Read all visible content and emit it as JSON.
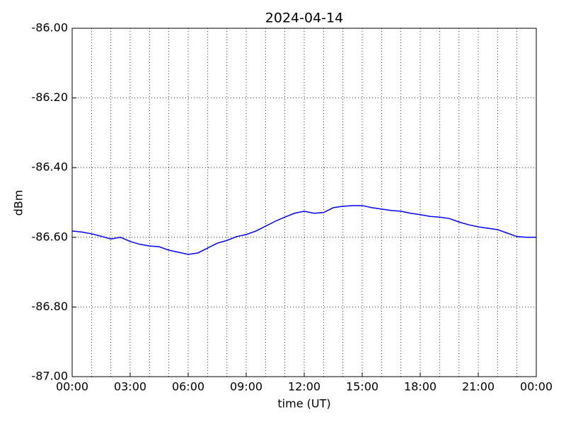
{
  "chart_data": {
    "type": "line",
    "title": "2024-04-14",
    "x_label": "time (UT)",
    "y_label": "dBm",
    "x": [
      0,
      0.5,
      1,
      1.5,
      2,
      2.5,
      3,
      3.5,
      4,
      4.5,
      5,
      5.5,
      6,
      6.5,
      7,
      7.5,
      8,
      8.5,
      9,
      9.5,
      10,
      10.5,
      11,
      11.5,
      12,
      12.5,
      13,
      13.5,
      14,
      14.5,
      15,
      15.5,
      16,
      16.5,
      17,
      17.5,
      18,
      18.5,
      19,
      19.5,
      20,
      20.5,
      21,
      21.5,
      22,
      22.5,
      23,
      23.5,
      24
    ],
    "series": [
      {
        "name": "dBm",
        "color": "#0000ff",
        "values": [
          -86.582,
          -86.585,
          -86.59,
          -86.597,
          -86.605,
          -86.6,
          -86.612,
          -86.62,
          -86.625,
          -86.627,
          -86.637,
          -86.643,
          -86.649,
          -86.645,
          -86.631,
          -86.617,
          -86.609,
          -86.598,
          -86.592,
          -86.582,
          -86.568,
          -86.554,
          -86.542,
          -86.531,
          -86.525,
          -86.531,
          -86.529,
          -86.515,
          -86.511,
          -86.509,
          -86.509,
          -86.515,
          -86.519,
          -86.523,
          -86.525,
          -86.531,
          -86.535,
          -86.54,
          -86.542,
          -86.546,
          -86.556,
          -86.564,
          -86.57,
          -86.574,
          -86.578,
          -86.588,
          -86.598,
          -86.6,
          -86.6
        ]
      }
    ],
    "xlim": [
      0,
      24
    ],
    "xticks": [
      {
        "value": 0,
        "label": "00:00"
      },
      {
        "value": 3,
        "label": "03:00"
      },
      {
        "value": 6,
        "label": "06:00"
      },
      {
        "value": 9,
        "label": "09:00"
      },
      {
        "value": 12,
        "label": "12:00"
      },
      {
        "value": 15,
        "label": "15:00"
      },
      {
        "value": 18,
        "label": "18:00"
      },
      {
        "value": 21,
        "label": "21:00"
      },
      {
        "value": 24,
        "label": "00:00"
      }
    ],
    "xminorticks": [
      1,
      2,
      4,
      5,
      7,
      8,
      10,
      11,
      13,
      14,
      16,
      17,
      19,
      20,
      22,
      23
    ],
    "ylim": [
      -87,
      -86
    ],
    "yticks": [
      {
        "value": -87,
        "label": "-87.00"
      },
      {
        "value": -86.8,
        "label": "-86.80"
      },
      {
        "value": -86.6,
        "label": "-86.60"
      },
      {
        "value": -86.4,
        "label": "-86.40"
      },
      {
        "value": -86.2,
        "label": "-86.20"
      },
      {
        "value": -86,
        "label": "-86.00"
      }
    ],
    "grid": true
  }
}
